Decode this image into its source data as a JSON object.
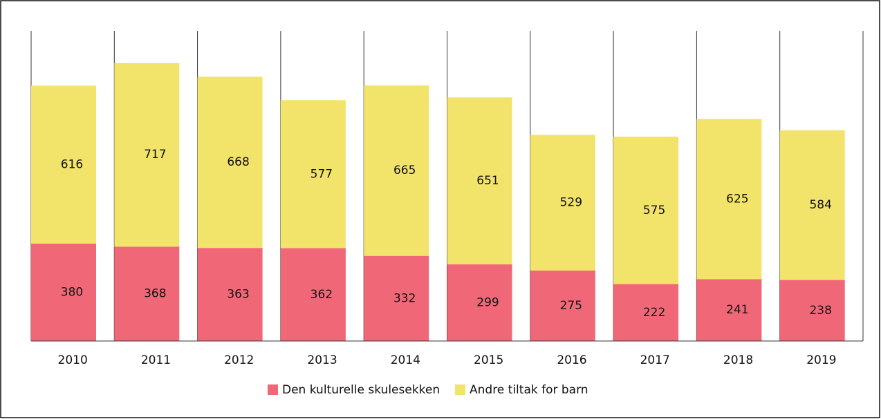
{
  "chart_data": {
    "type": "stacked-bar",
    "categories": [
      "2010",
      "2011",
      "2012",
      "2013",
      "2014",
      "2015",
      "2016",
      "2017",
      "2018",
      "2019"
    ],
    "series": [
      {
        "name": "Den kulturelle skulesekken",
        "color": "#f06878",
        "values": [
          380,
          368,
          363,
          362,
          332,
          299,
          275,
          222,
          241,
          238
        ]
      },
      {
        "name": "Andre tiltak for barn",
        "color": "#f2e36b",
        "values": [
          616,
          717,
          668,
          577,
          665,
          651,
          529,
          575,
          625,
          584
        ]
      }
    ],
    "legend": "bottom"
  }
}
